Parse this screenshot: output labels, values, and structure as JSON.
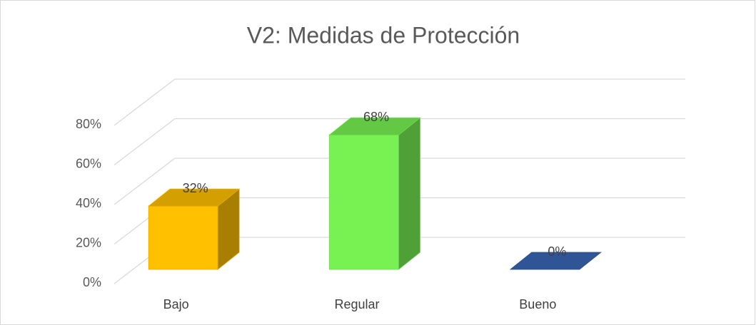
{
  "chart_data": {
    "type": "bar3d",
    "title": "V2: Medidas de Protección",
    "categories": [
      "Bajo",
      "Regular",
      "Bueno"
    ],
    "values": [
      32,
      68,
      0
    ],
    "value_labels": [
      "32%",
      "68%",
      "0%"
    ],
    "colors": [
      "#ffc000",
      "#77f252",
      "#2f5597"
    ],
    "ylim": [
      0,
      80
    ],
    "yticks": [
      {
        "value": 0,
        "label": "0%"
      },
      {
        "value": 20,
        "label": "20%"
      },
      {
        "value": 40,
        "label": "40%"
      },
      {
        "value": 60,
        "label": "60%"
      },
      {
        "value": 80,
        "label": "80%"
      }
    ],
    "grid": true
  }
}
